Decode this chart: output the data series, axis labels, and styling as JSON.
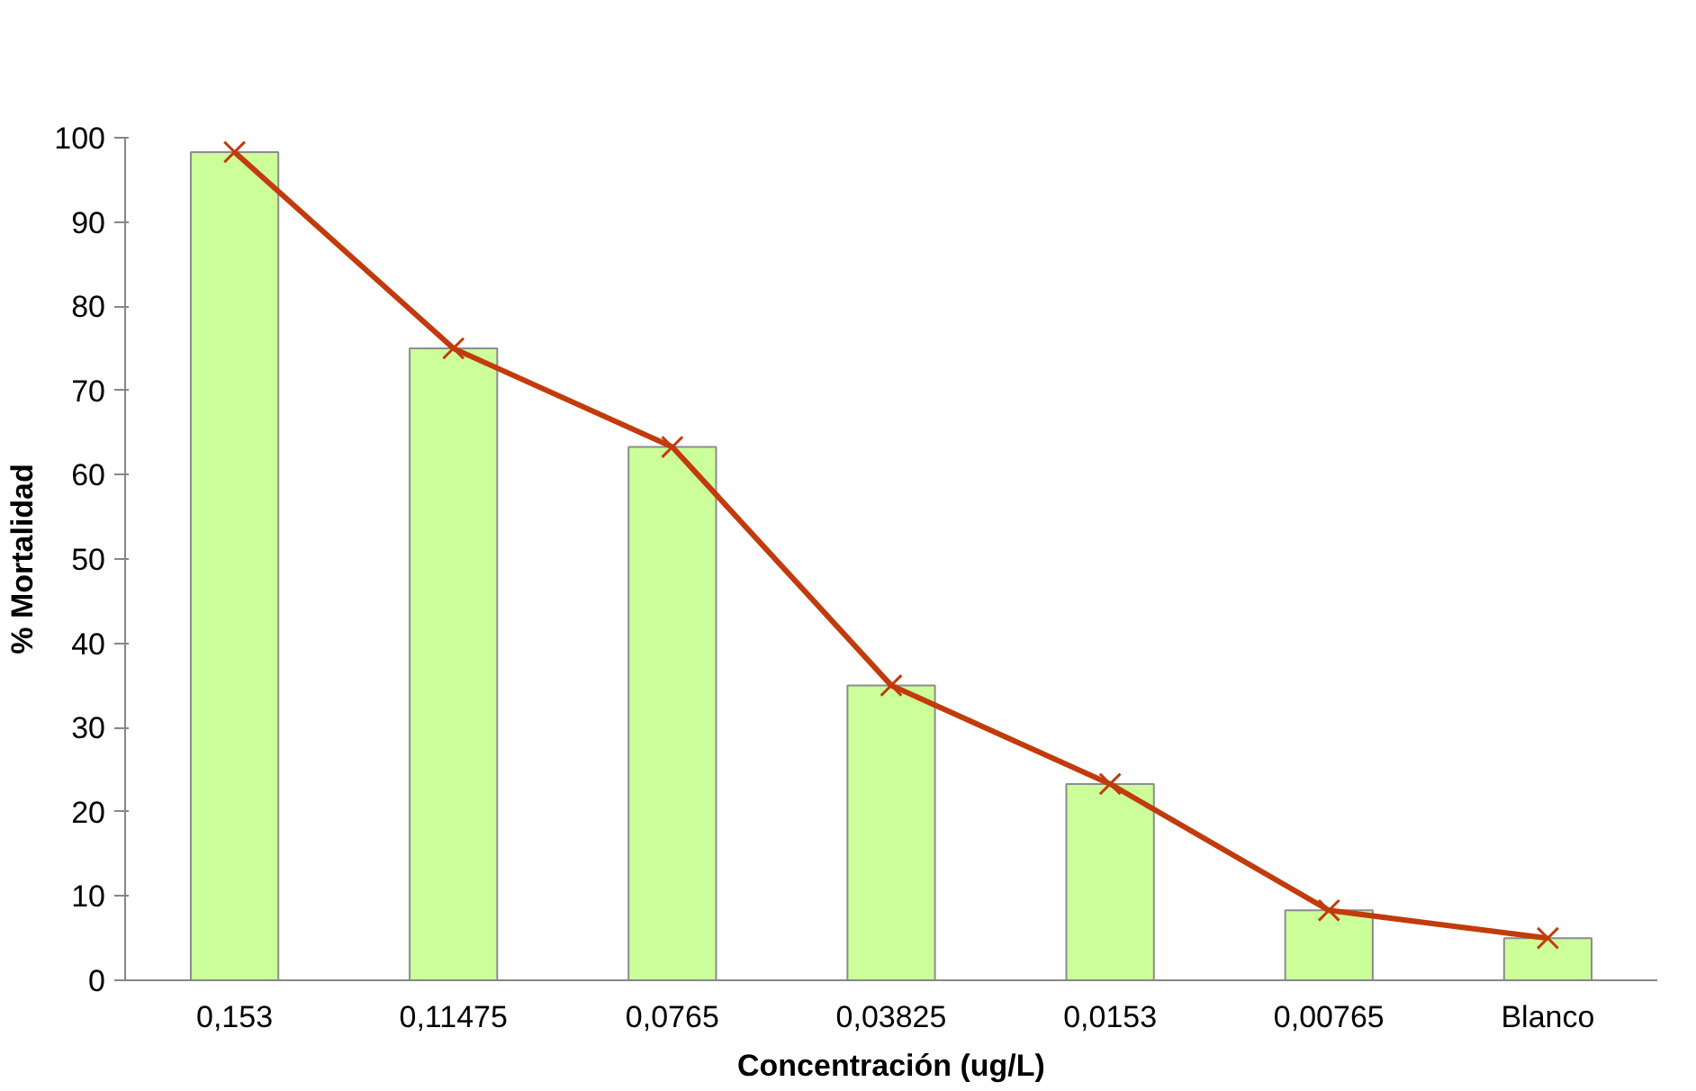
{
  "chart_data": {
    "type": "bar",
    "xlabel": "Concentración (ug/L)",
    "ylabel": "% Mortalidad",
    "categories": [
      "0,153",
      "0,11475",
      "0,0765",
      "0,03825",
      "0,0153",
      "0,00765",
      "Blanco"
    ],
    "series": [
      {
        "color": "#ccff99",
        "values": [
          98.3,
          75,
          63.3,
          35,
          23.3,
          8.3,
          5
        ]
      },
      {
        "type": "line",
        "color": "#c23b0c",
        "marker": "cross",
        "values": [
          98.3,
          75,
          63.3,
          35,
          23.3,
          8.3,
          5
        ]
      }
    ],
    "ylim": [
      0,
      100
    ],
    "yticks": [
      0,
      10,
      20,
      30,
      40,
      50,
      60,
      70,
      80,
      90,
      100
    ],
    "grid": false
  }
}
